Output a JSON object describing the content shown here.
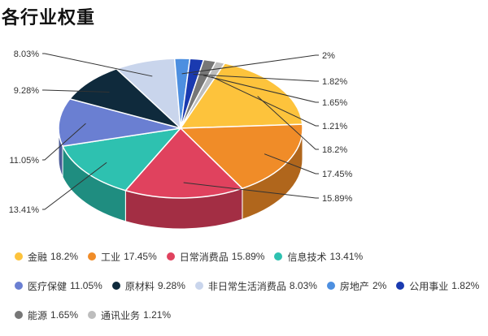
{
  "title": "各行业权重",
  "chart_data": {
    "type": "pie",
    "title": "各行业权重",
    "slices": [
      {
        "name": "金融",
        "value": 18.2,
        "label": "18.2%",
        "color": "#FDC33C",
        "side": "#B58D2A"
      },
      {
        "name": "工业",
        "value": 17.45,
        "label": "17.45%",
        "color": "#F08C28",
        "side": "#B0661C"
      },
      {
        "name": "日常消费品",
        "value": 15.89,
        "label": "15.89%",
        "color": "#E0425E",
        "side": "#A32E44"
      },
      {
        "name": "信息技术",
        "value": 13.41,
        "label": "13.41%",
        "color": "#2EC1B0",
        "side": "#1F8D80"
      },
      {
        "name": "医疗保健",
        "value": 11.05,
        "label": "11.05%",
        "color": "#6A7FD2",
        "side": "#4C5C99"
      },
      {
        "name": "原材料",
        "value": 9.28,
        "label": "9.28%",
        "color": "#0F2A3C",
        "side": "#081C28"
      },
      {
        "name": "非日常生活消费品",
        "value": 8.03,
        "label": "8.03%",
        "color": "#C9D5EC",
        "side": "#9299AC"
      },
      {
        "name": "房地产",
        "value": 2,
        "label": "2%",
        "color": "#4D8FE0",
        "side": "#3667A3"
      },
      {
        "name": "公用事业",
        "value": 1.82,
        "label": "1.82%",
        "color": "#1A3AB0",
        "side": "#122A80"
      },
      {
        "name": "能源",
        "value": 1.65,
        "label": "1.65%",
        "color": "#777777",
        "side": "#555555"
      },
      {
        "name": "通讯业务",
        "value": 1.21,
        "label": "1.21%",
        "color": "#BDBDBD",
        "side": "#8A8A8A"
      }
    ],
    "legend_placement": "bottom"
  }
}
